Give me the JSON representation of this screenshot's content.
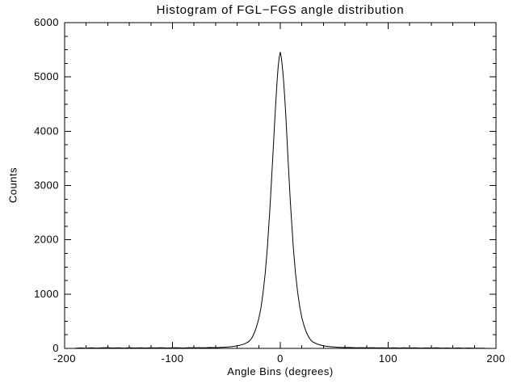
{
  "page": {
    "background": "#ffffff"
  },
  "chart_data": {
    "type": "line",
    "title": "Histogram of FGL−FGS angle distribution",
    "xlabel": "Angle Bins (degrees)",
    "ylabel": "Counts",
    "xlim": [
      -200,
      200
    ],
    "ylim": [
      0,
      6000
    ],
    "xticks": [
      -200,
      -100,
      0,
      100,
      200
    ],
    "yticks": [
      0,
      1000,
      2000,
      3000,
      4000,
      5000,
      6000
    ],
    "x_minor_per_major": 5,
    "y_minor_per_major": 4,
    "grid": false,
    "legend_position": "none",
    "axis_color": "#000000",
    "line_color": "#000000",
    "background": "#ffffff",
    "series": [
      {
        "name": "histogram",
        "points": [
          [
            -190,
            4
          ],
          [
            -185,
            9
          ],
          [
            -180,
            5
          ],
          [
            -175,
            12
          ],
          [
            -170,
            6
          ],
          [
            -165,
            10
          ],
          [
            -160,
            14
          ],
          [
            -155,
            7
          ],
          [
            -150,
            11
          ],
          [
            -145,
            6
          ],
          [
            -140,
            13
          ],
          [
            -135,
            8
          ],
          [
            -130,
            12
          ],
          [
            -125,
            7
          ],
          [
            -120,
            11
          ],
          [
            -115,
            9
          ],
          [
            -110,
            13
          ],
          [
            -105,
            7
          ],
          [
            -100,
            10
          ],
          [
            -95,
            12
          ],
          [
            -90,
            8
          ],
          [
            -85,
            14
          ],
          [
            -80,
            10
          ],
          [
            -75,
            13
          ],
          [
            -70,
            11
          ],
          [
            -65,
            16
          ],
          [
            -60,
            14
          ],
          [
            -55,
            18
          ],
          [
            -50,
            24
          ],
          [
            -46,
            30
          ],
          [
            -42,
            40
          ],
          [
            -38,
            55
          ],
          [
            -34,
            78
          ],
          [
            -30,
            115
          ],
          [
            -28,
            150
          ],
          [
            -26,
            205
          ],
          [
            -24,
            290
          ],
          [
            -22,
            400
          ],
          [
            -20,
            545
          ],
          [
            -18,
            740
          ],
          [
            -16,
            1020
          ],
          [
            -14,
            1380
          ],
          [
            -12,
            1860
          ],
          [
            -10,
            2450
          ],
          [
            -9,
            2800
          ],
          [
            -8,
            3150
          ],
          [
            -7,
            3520
          ],
          [
            -6,
            3890
          ],
          [
            -5,
            4250
          ],
          [
            -4,
            4600
          ],
          [
            -3,
            4920
          ],
          [
            -2,
            5180
          ],
          [
            -1,
            5370
          ],
          [
            0,
            5460
          ],
          [
            1,
            5350
          ],
          [
            2,
            5160
          ],
          [
            3,
            4940
          ],
          [
            4,
            4660
          ],
          [
            5,
            4320
          ],
          [
            6,
            3940
          ],
          [
            7,
            3560
          ],
          [
            8,
            3180
          ],
          [
            9,
            2810
          ],
          [
            10,
            2470
          ],
          [
            12,
            1880
          ],
          [
            14,
            1400
          ],
          [
            16,
            1040
          ],
          [
            18,
            770
          ],
          [
            20,
            565
          ],
          [
            22,
            415
          ],
          [
            24,
            305
          ],
          [
            26,
            220
          ],
          [
            28,
            160
          ],
          [
            30,
            120
          ],
          [
            34,
            82
          ],
          [
            38,
            58
          ],
          [
            42,
            42
          ],
          [
            46,
            32
          ],
          [
            50,
            25
          ],
          [
            55,
            19
          ],
          [
            60,
            15
          ],
          [
            65,
            17
          ],
          [
            70,
            12
          ],
          [
            75,
            14
          ],
          [
            80,
            10
          ],
          [
            85,
            13
          ],
          [
            90,
            9
          ],
          [
            95,
            12
          ],
          [
            100,
            8
          ],
          [
            105,
            11
          ],
          [
            110,
            7
          ],
          [
            115,
            10
          ],
          [
            120,
            8
          ],
          [
            125,
            11
          ],
          [
            130,
            6
          ],
          [
            135,
            9
          ],
          [
            140,
            7
          ],
          [
            145,
            10
          ],
          [
            150,
            6
          ],
          [
            155,
            8
          ],
          [
            160,
            5
          ],
          [
            165,
            9
          ],
          [
            170,
            4
          ],
          [
            175,
            7
          ],
          [
            180,
            5
          ],
          [
            185,
            3
          ],
          [
            190,
            4
          ]
        ]
      }
    ]
  }
}
